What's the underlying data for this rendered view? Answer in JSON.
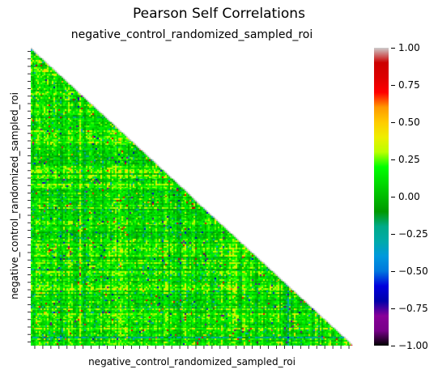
{
  "chart_data": {
    "type": "heatmap",
    "suptitle": "Pearson Self Correlations",
    "title": "negative_control_randomized_sampled_roi",
    "xlabel": "negative_control_randomized_sampled_roi",
    "ylabel": "negative_control_randomized_sampled_roi",
    "mask": "upper-triangle",
    "n_variables": 200,
    "value_distribution": "mostly 0.0 to 0.35 with sparse values toward -1.0 and 1.0",
    "colorbar": {
      "colormap": "nipy_spectral",
      "vmin": -1.0,
      "vmax": 1.0,
      "ticks": [
        1.0,
        0.75,
        0.5,
        0.25,
        0.0,
        -0.25,
        -0.5,
        -0.75,
        -1.0
      ],
      "tick_labels": [
        "1.00",
        "0.75",
        "0.50",
        "0.25",
        "0.00",
        "−0.25",
        "−0.50",
        "−0.75",
        "−1.00"
      ]
    }
  }
}
